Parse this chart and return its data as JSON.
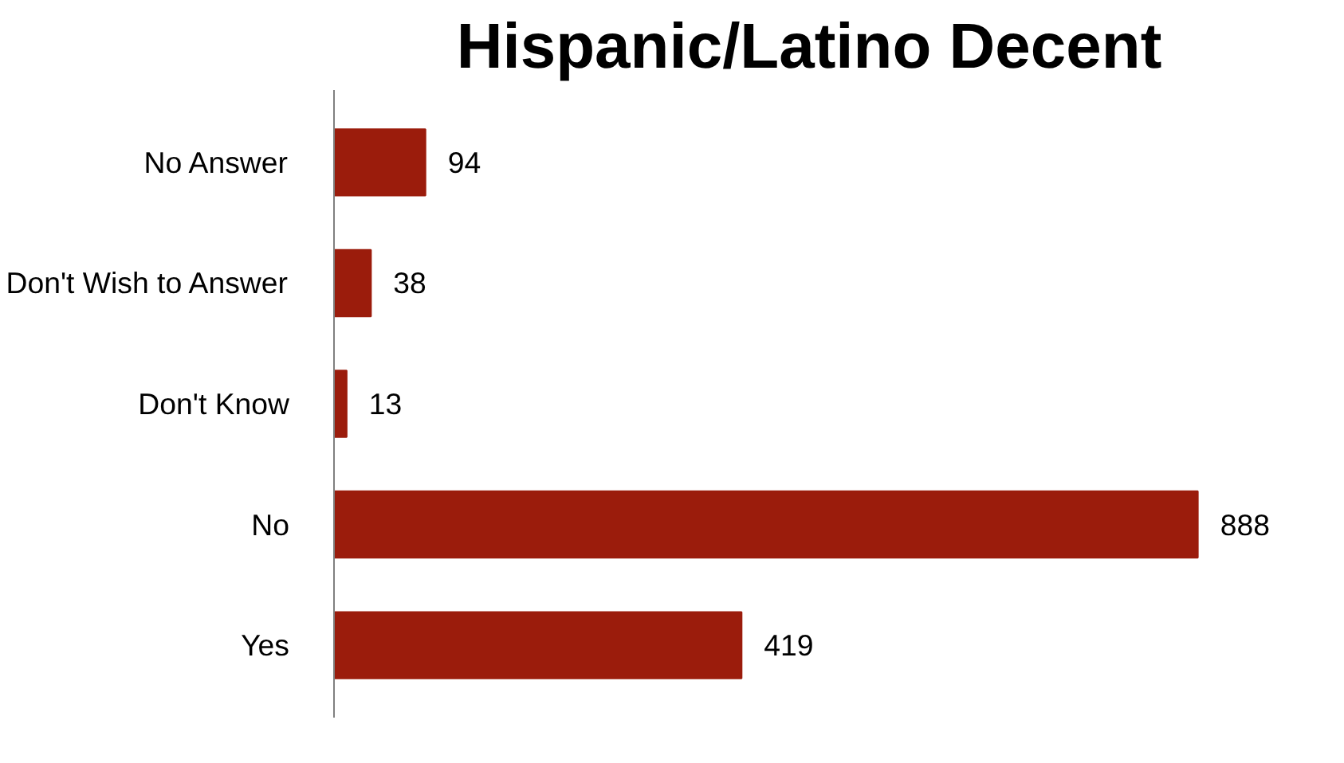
{
  "chart_data": {
    "type": "bar",
    "orientation": "horizontal",
    "title": "Hispanic/Latino Decent",
    "categories": [
      "No Answer",
      "Don't Wish to Answer",
      "Don't Know",
      "No",
      "Yes"
    ],
    "values": [
      94,
      38,
      13,
      888,
      419
    ],
    "color": "#9b1c0c",
    "data_labels": true,
    "grid": false
  }
}
